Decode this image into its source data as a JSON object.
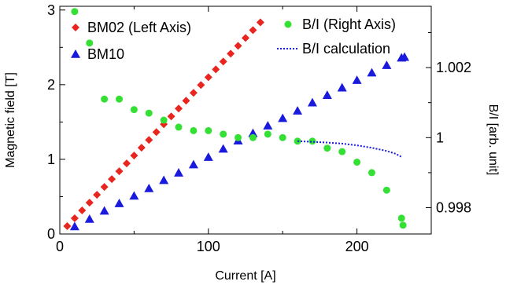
{
  "chart_data": {
    "type": "scatter",
    "title": "",
    "xlabel": "Current [A]",
    "ylabel_left": "Magnetic field [T]",
    "ylabel_right": "B/I [arb. unit]",
    "xlim": [
      0,
      250
    ],
    "ylim_left": [
      0,
      3.05
    ],
    "ylim_right": [
      0.99725,
      1.00375
    ],
    "x_ticks": [
      0,
      100,
      200
    ],
    "y_left_ticks": [
      0,
      1,
      2,
      3
    ],
    "y_right_ticks": [
      0.998,
      1,
      1.002
    ],
    "y_right_tick_labels": [
      "0.998",
      "1",
      "1.002"
    ],
    "grid": false,
    "legend": [
      {
        "label": "BM02 (Left Axis)",
        "marker": "diamond",
        "color": "#e8251f"
      },
      {
        "label": "BM10",
        "marker": "triangle",
        "color": "#1a1adc"
      },
      {
        "label": "B/I (Right Axis)",
        "marker": "circle",
        "color": "#33e033"
      },
      {
        "label": "B/I calculation",
        "marker": "dotted-line",
        "color": "#1a1adc"
      }
    ],
    "series": [
      {
        "name": "BM02 (Left Axis)",
        "axis": "left",
        "marker": "diamond",
        "color": "#e8251f",
        "x": [
          5,
          10,
          15,
          20,
          25,
          30,
          35,
          40,
          45,
          50,
          55,
          60,
          65,
          70,
          75,
          80,
          85,
          90,
          95,
          100,
          105,
          110,
          115,
          120,
          125,
          130,
          135
        ],
        "y": [
          0.105,
          0.21,
          0.315,
          0.42,
          0.525,
          0.63,
          0.735,
          0.84,
          0.945,
          1.05,
          1.155,
          1.26,
          1.365,
          1.47,
          1.575,
          1.68,
          1.785,
          1.89,
          1.995,
          2.1,
          2.205,
          2.31,
          2.415,
          2.52,
          2.625,
          2.73,
          2.835
        ]
      },
      {
        "name": "BM10",
        "axis": "left",
        "marker": "triangle",
        "color": "#1a1adc",
        "x": [
          10,
          20,
          30,
          40,
          50,
          60,
          70,
          80,
          90,
          100,
          110,
          120,
          130,
          140,
          150,
          160,
          170,
          180,
          190,
          200,
          210,
          220,
          230,
          232
        ],
        "y": [
          0.1,
          0.2,
          0.31,
          0.41,
          0.51,
          0.61,
          0.72,
          0.82,
          0.93,
          1.03,
          1.14,
          1.25,
          1.35,
          1.45,
          1.55,
          1.65,
          1.76,
          1.86,
          1.96,
          2.06,
          2.16,
          2.26,
          2.36,
          2.37
        ]
      },
      {
        "name": "B/I (Right Axis)",
        "axis": "right",
        "marker": "circle",
        "color": "#33e033",
        "x": [
          10,
          20,
          30,
          40,
          50,
          60,
          70,
          80,
          90,
          100,
          110,
          120,
          130,
          140,
          150,
          160,
          170,
          180,
          190,
          200,
          210,
          220,
          230,
          231
        ],
        "y": [
          1.0036,
          1.0027,
          1.0011,
          1.0011,
          1.0008,
          1.0007,
          1.0005,
          1.0003,
          1.0002,
          1.0002,
          1.0001,
          1.0,
          1.0,
          1.0001,
          1.0,
          0.9999,
          0.9999,
          0.9997,
          0.9996,
          0.9993,
          0.999,
          0.9985,
          0.9977,
          0.9975
        ]
      },
      {
        "name": "B/I calculation",
        "axis": "right",
        "style": "dotted",
        "color": "#1a1adc",
        "x": [
          160,
          170,
          180,
          190,
          200,
          210,
          220,
          226,
          230
        ],
        "y": [
          0.9999,
          0.99988,
          0.99986,
          0.99983,
          0.99978,
          0.99971,
          0.99962,
          0.99954,
          0.99945
        ]
      }
    ]
  }
}
